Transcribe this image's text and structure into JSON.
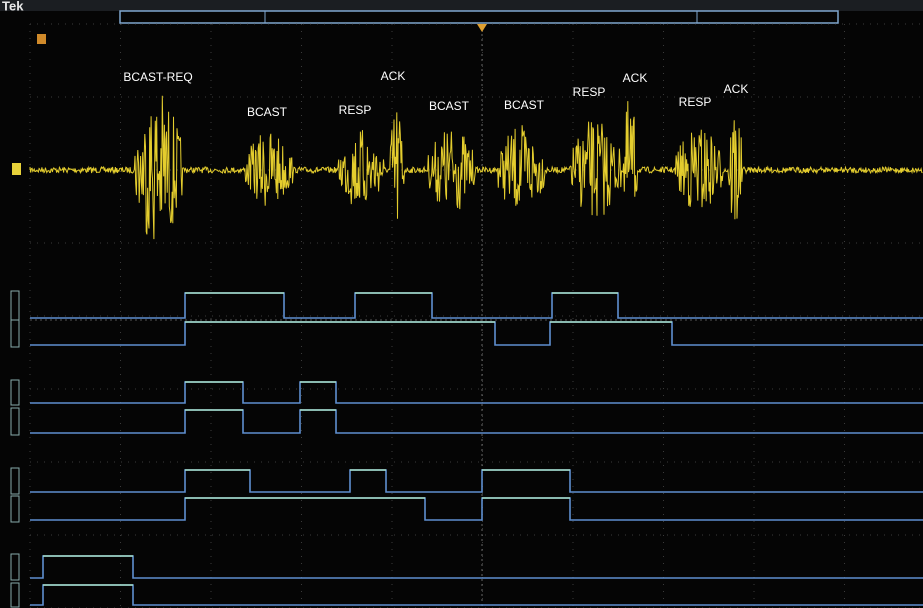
{
  "header": {
    "brand": "Tek"
  },
  "labels": [
    "BCAST-REQ",
    "BCAST",
    "RESP",
    "ACK",
    "BCAST",
    "BCAST",
    "RESP",
    "ACK",
    "RESP",
    "ACK"
  ]
}
